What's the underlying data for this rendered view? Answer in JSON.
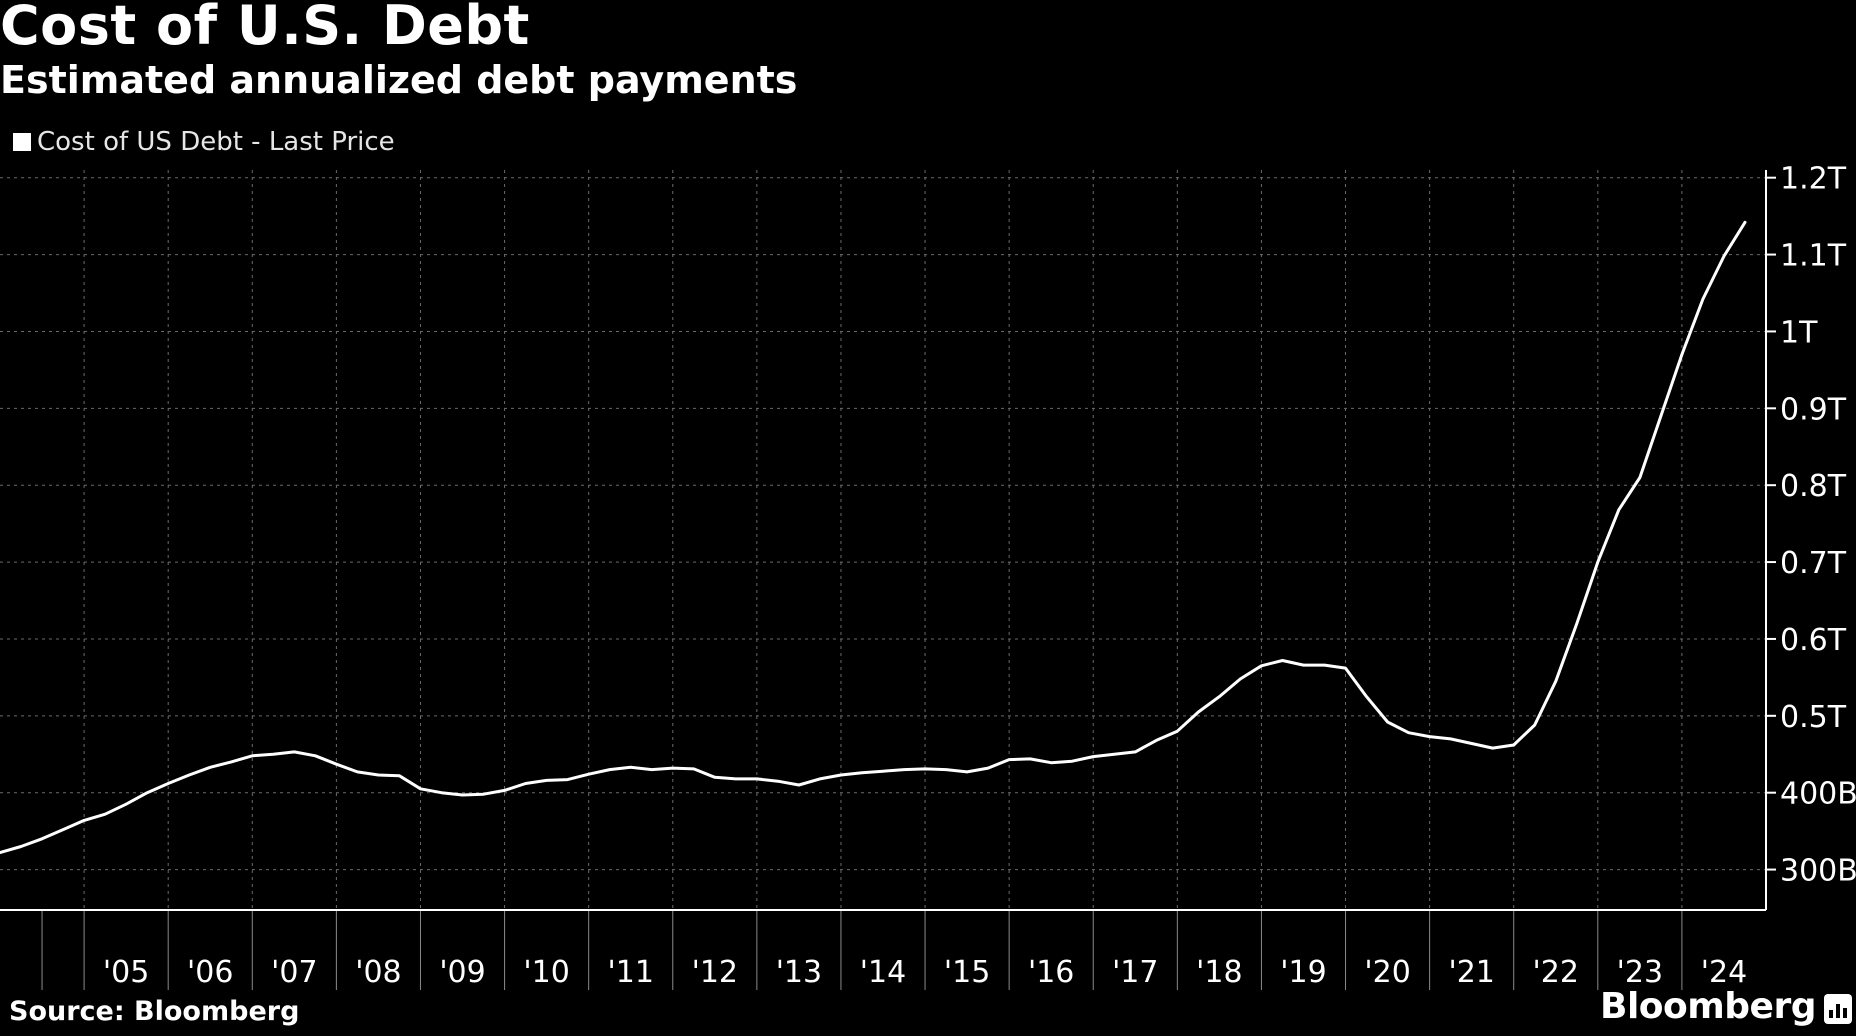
{
  "title": "Cost of U.S. Debt",
  "subtitle": "Estimated annualized debt payments",
  "legend": {
    "label": "Cost of US Debt - Last Price",
    "color": "#ffffff"
  },
  "source": "Source: Bloomberg",
  "brand": "Bloomberg",
  "chart_data": {
    "type": "line",
    "title": "Cost of U.S. Debt",
    "subtitle": "Estimated annualized debt payments",
    "xlabel": "",
    "ylabel": "",
    "xlim": [
      2004.0,
      2025.0
    ],
    "ylim": [
      250,
      1210
    ],
    "y_axis_position": "right",
    "grid": true,
    "legend_position": "top-left",
    "line_color": "#ffffff",
    "background": "#000000",
    "x_tick_labels": [
      {
        "year": 2005,
        "label": "'05"
      },
      {
        "year": 2006,
        "label": "'06"
      },
      {
        "year": 2007,
        "label": "'07"
      },
      {
        "year": 2008,
        "label": "'08"
      },
      {
        "year": 2009,
        "label": "'09"
      },
      {
        "year": 2010,
        "label": "'10"
      },
      {
        "year": 2011,
        "label": "'11"
      },
      {
        "year": 2012,
        "label": "'12"
      },
      {
        "year": 2013,
        "label": "'13"
      },
      {
        "year": 2014,
        "label": "'14"
      },
      {
        "year": 2015,
        "label": "'15"
      },
      {
        "year": 2016,
        "label": "'16"
      },
      {
        "year": 2017,
        "label": "'17"
      },
      {
        "year": 2018,
        "label": "'18"
      },
      {
        "year": 2019,
        "label": "'19"
      },
      {
        "year": 2020,
        "label": "'20"
      },
      {
        "year": 2021,
        "label": "'21"
      },
      {
        "year": 2022,
        "label": "'22"
      },
      {
        "year": 2023,
        "label": "'23"
      },
      {
        "year": 2024,
        "label": "'24"
      }
    ],
    "y_ticks": [
      {
        "value": 300,
        "label": "300B"
      },
      {
        "value": 400,
        "label": "400B"
      },
      {
        "value": 500,
        "label": "0.5T"
      },
      {
        "value": 600,
        "label": "0.6T"
      },
      {
        "value": 700,
        "label": "0.7T"
      },
      {
        "value": 800,
        "label": "0.8T"
      },
      {
        "value": 900,
        "label": "0.9T"
      },
      {
        "value": 1000,
        "label": "1T"
      },
      {
        "value": 1100,
        "label": "1.1T"
      },
      {
        "value": 1200,
        "label": "1.2T"
      }
    ],
    "series": [
      {
        "name": "Cost of US Debt - Last Price",
        "units": "billions USD",
        "points": [
          [
            2004.0,
            322
          ],
          [
            2004.25,
            330
          ],
          [
            2004.5,
            340
          ],
          [
            2004.75,
            352
          ],
          [
            2005.0,
            364
          ],
          [
            2005.25,
            372
          ],
          [
            2005.5,
            385
          ],
          [
            2005.75,
            400
          ],
          [
            2006.0,
            412
          ],
          [
            2006.25,
            423
          ],
          [
            2006.5,
            433
          ],
          [
            2006.75,
            440
          ],
          [
            2007.0,
            448
          ],
          [
            2007.25,
            450
          ],
          [
            2007.5,
            453
          ],
          [
            2007.75,
            448
          ],
          [
            2008.0,
            437
          ],
          [
            2008.25,
            427
          ],
          [
            2008.5,
            423
          ],
          [
            2008.75,
            422
          ],
          [
            2009.0,
            405
          ],
          [
            2009.25,
            400
          ],
          [
            2009.5,
            397
          ],
          [
            2009.75,
            398
          ],
          [
            2010.0,
            403
          ],
          [
            2010.25,
            412
          ],
          [
            2010.5,
            416
          ],
          [
            2010.75,
            417
          ],
          [
            2011.0,
            424
          ],
          [
            2011.25,
            430
          ],
          [
            2011.5,
            433
          ],
          [
            2011.75,
            430
          ],
          [
            2012.0,
            432
          ],
          [
            2012.25,
            431
          ],
          [
            2012.5,
            420
          ],
          [
            2012.75,
            418
          ],
          [
            2013.0,
            418
          ],
          [
            2013.25,
            415
          ],
          [
            2013.5,
            410
          ],
          [
            2013.75,
            418
          ],
          [
            2014.0,
            423
          ],
          [
            2014.25,
            426
          ],
          [
            2014.5,
            428
          ],
          [
            2014.75,
            430
          ],
          [
            2015.0,
            431
          ],
          [
            2015.25,
            430
          ],
          [
            2015.5,
            427
          ],
          [
            2015.75,
            432
          ],
          [
            2016.0,
            443
          ],
          [
            2016.25,
            444
          ],
          [
            2016.5,
            439
          ],
          [
            2016.75,
            441
          ],
          [
            2017.0,
            447
          ],
          [
            2017.25,
            450
          ],
          [
            2017.5,
            453
          ],
          [
            2017.75,
            468
          ],
          [
            2018.0,
            480
          ],
          [
            2018.25,
            505
          ],
          [
            2018.5,
            525
          ],
          [
            2018.75,
            548
          ],
          [
            2019.0,
            565
          ],
          [
            2019.25,
            572
          ],
          [
            2019.5,
            566
          ],
          [
            2019.75,
            566
          ],
          [
            2020.0,
            562
          ],
          [
            2020.25,
            525
          ],
          [
            2020.5,
            492
          ],
          [
            2020.75,
            478
          ],
          [
            2021.0,
            473
          ],
          [
            2021.25,
            470
          ],
          [
            2021.5,
            464
          ],
          [
            2021.75,
            458
          ],
          [
            2022.0,
            462
          ],
          [
            2022.25,
            488
          ],
          [
            2022.5,
            545
          ],
          [
            2022.75,
            620
          ],
          [
            2023.0,
            700
          ],
          [
            2023.25,
            768
          ],
          [
            2023.5,
            810
          ],
          [
            2023.75,
            890
          ],
          [
            2024.0,
            970
          ],
          [
            2024.25,
            1042
          ],
          [
            2024.5,
            1098
          ],
          [
            2024.75,
            1142
          ]
        ]
      }
    ]
  }
}
